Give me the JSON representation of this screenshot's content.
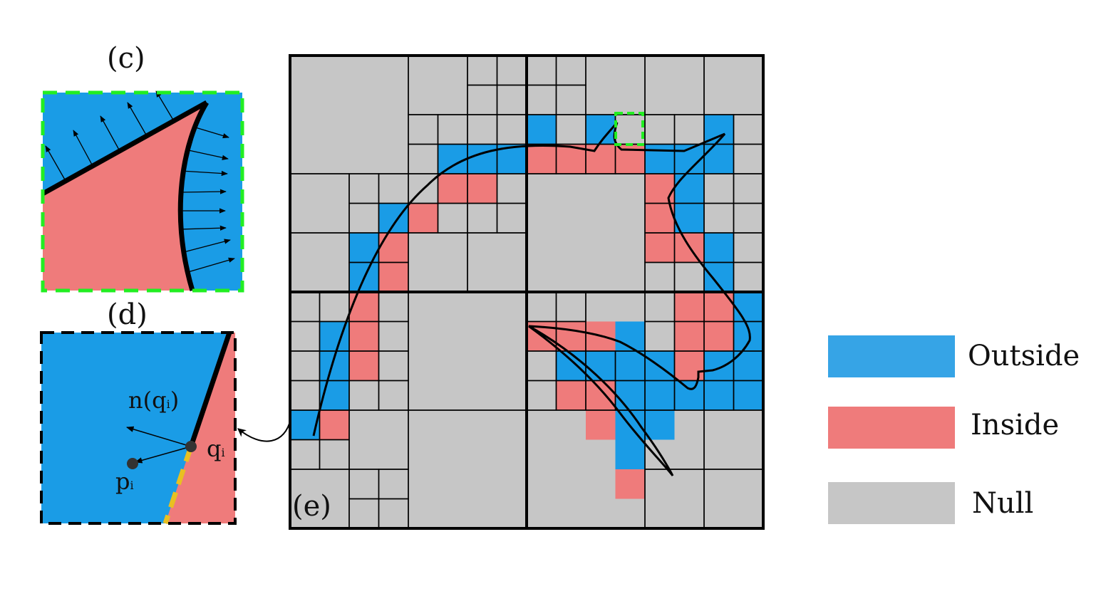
{
  "panels": {
    "c": {
      "label": "(c)"
    },
    "d": {
      "label": "(d)",
      "normal_label": "n(q",
      "normal_sub": "i",
      "normal_close": ")",
      "q_label": "q",
      "q_sub": "i",
      "p_label": "p",
      "p_sub": "i"
    },
    "e": {
      "label": "(e)"
    }
  },
  "legend": {
    "items": [
      {
        "label": "Outside",
        "color": "#36A4E6"
      },
      {
        "label": "Inside",
        "color": "#EF7B7B"
      },
      {
        "label": "Null",
        "color": "#C6C6C6"
      }
    ]
  },
  "colors": {
    "outside": "#1A9CE6",
    "inside": "#EF7B7B",
    "null": "#C6C6C6",
    "highlight_dash": "#22EE22",
    "surface_dash": "#E8C021",
    "outline": "#000000"
  }
}
